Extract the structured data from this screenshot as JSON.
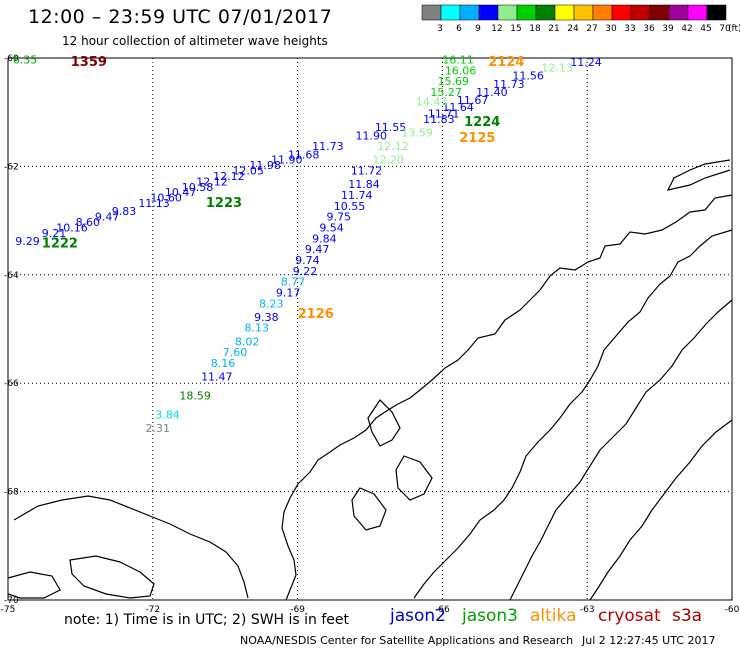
{
  "header": {
    "title": "12:00 – 23:59 UTC 07/01/2017",
    "subtitle": "12 hour collection of altimeter wave heights"
  },
  "colorbar": {
    "unit_label": "(ft)",
    "boxes": [
      {
        "color": "#808080",
        "label": "3"
      },
      {
        "color": "#00ffff",
        "label": "6"
      },
      {
        "color": "#00b0ff",
        "label": "9"
      },
      {
        "color": "#0000ff",
        "label": "12"
      },
      {
        "color": "#90ee90",
        "label": "15"
      },
      {
        "color": "#00d000",
        "label": "18"
      },
      {
        "color": "#008000",
        "label": "21"
      },
      {
        "color": "#ffff00",
        "label": "24"
      },
      {
        "color": "#ffc000",
        "label": "27"
      },
      {
        "color": "#ff8000",
        "label": "30"
      },
      {
        "color": "#ff0000",
        "label": "33"
      },
      {
        "color": "#c00000",
        "label": "36"
      },
      {
        "color": "#800000",
        "label": "39"
      },
      {
        "color": "#a000a0",
        "label": "42"
      },
      {
        "color": "#ff00ff",
        "label": "45"
      },
      {
        "color": "#000000",
        "label": "70"
      }
    ]
  },
  "axes": {
    "lon_labels": [
      "-75",
      "-72",
      "-69",
      "-66",
      "-63",
      "-60"
    ],
    "lat_labels": [
      "-60",
      "-62",
      "-64",
      "-66",
      "-68",
      "-70"
    ]
  },
  "footer": {
    "note": "note: 1) Time is in UTC; 2) SWH is in feet",
    "credit": "NOAA/NESDIS Center for Satellite Applications and Research",
    "timestamp": "Jul  2 12:27:45 UTC 2017"
  },
  "satellites": [
    {
      "name": "jason2",
      "color": "#0000c0"
    },
    {
      "name": "jason3",
      "color": "#00a000"
    },
    {
      "name": "altika",
      "color": "#ff9000"
    },
    {
      "name": "cryosat",
      "color": "#c00000"
    },
    {
      "name": "s3a",
      "color": "#a00000"
    }
  ],
  "pass_labels": [
    {
      "text": "1359",
      "color": "#800000",
      "lon": -73.7,
      "lat": -60.15
    },
    {
      "text": "2124",
      "color": "#ff9000",
      "lon": -65.05,
      "lat": -60.15
    },
    {
      "text": "1224",
      "color": "#008000",
      "lon": -65.55,
      "lat": -61.25
    },
    {
      "text": "2125",
      "color": "#ff9000",
      "lon": -65.65,
      "lat": -61.55
    },
    {
      "text": "1223",
      "color": "#008000",
      "lon": -70.9,
      "lat": -62.75
    },
    {
      "text": "1222",
      "color": "#008000",
      "lon": -74.3,
      "lat": -63.5
    },
    {
      "text": "2126",
      "color": "#ff9000",
      "lon": -69.0,
      "lat": -64.8
    }
  ],
  "obs_track_a": [
    {
      "v": "6.35",
      "c": "#00a000",
      "lon": -74.9,
      "lat": -60.1
    },
    {
      "v": "11.24",
      "c": "#0000ff",
      "lon": -63.35,
      "lat": -60.15
    },
    {
      "v": "12.13",
      "c": "#90ee90",
      "lon": -63.95,
      "lat": -60.25
    },
    {
      "v": "11.56",
      "c": "#0000ff",
      "lon": -64.55,
      "lat": -60.4
    },
    {
      "v": "11.73",
      "c": "#0000ff",
      "lon": -64.95,
      "lat": -60.55
    },
    {
      "v": "11.40",
      "c": "#0000ff",
      "lon": -65.3,
      "lat": -60.7
    },
    {
      "v": "11.67",
      "c": "#0000ff",
      "lon": -65.7,
      "lat": -60.85
    },
    {
      "v": "11.64",
      "c": "#0000ff",
      "lon": -66.0,
      "lat": -60.98
    },
    {
      "v": "11.71",
      "c": "#0000ff",
      "lon": -66.3,
      "lat": -61.1
    },
    {
      "v": "11.55",
      "c": "#0000ff",
      "lon": -67.4,
      "lat": -61.35
    },
    {
      "v": "11.90",
      "c": "#0000ff",
      "lon": -67.8,
      "lat": -61.5
    },
    {
      "v": "11.73",
      "c": "#0000ff",
      "lon": -68.7,
      "lat": -61.7
    },
    {
      "v": "11.68",
      "c": "#0000ff",
      "lon": -69.2,
      "lat": -61.85
    },
    {
      "v": "11.90",
      "c": "#0000ff",
      "lon": -69.55,
      "lat": -61.95
    },
    {
      "v": "11.98",
      "c": "#0000ff",
      "lon": -70.0,
      "lat": -62.05
    },
    {
      "v": "12.05",
      "c": "#0000ff",
      "lon": -70.35,
      "lat": -62.15
    },
    {
      "v": "12.12",
      "c": "#0000ff",
      "lon": -70.75,
      "lat": -62.25
    },
    {
      "v": "12.12",
      "c": "#0000ff",
      "lon": -71.1,
      "lat": -62.35
    },
    {
      "v": "10.58",
      "c": "#0000ff",
      "lon": -71.4,
      "lat": -62.45
    },
    {
      "v": "10.47",
      "c": "#0000ff",
      "lon": -71.75,
      "lat": -62.55
    },
    {
      "v": "10.60",
      "c": "#0000ff",
      "lon": -72.05,
      "lat": -62.65
    },
    {
      "v": "11.13",
      "c": "#0000ff",
      "lon": -72.3,
      "lat": -62.75
    },
    {
      "v": "9.83",
      "c": "#0000ff",
      "lon": -72.85,
      "lat": -62.9
    },
    {
      "v": "9.47",
      "c": "#0000ff",
      "lon": -73.2,
      "lat": -63.0
    },
    {
      "v": "8.60",
      "c": "#0000ff",
      "lon": -73.6,
      "lat": -63.1
    },
    {
      "v": "10.16",
      "c": "#0000ff",
      "lon": -74.0,
      "lat": -63.2
    },
    {
      "v": "9.21",
      "c": "#0000ff",
      "lon": -74.3,
      "lat": -63.3
    },
    {
      "v": "9.29",
      "c": "#0000ff",
      "lon": -74.85,
      "lat": -63.45
    }
  ],
  "obs_track_b": [
    {
      "v": "16.11",
      "c": "#00d000",
      "lon": -66.0,
      "lat": -60.1
    },
    {
      "v": "16.06",
      "c": "#00d000",
      "lon": -65.95,
      "lat": -60.3
    },
    {
      "v": "15.69",
      "c": "#00d000",
      "lon": -66.1,
      "lat": -60.5
    },
    {
      "v": "15.27",
      "c": "#00d000",
      "lon": -66.25,
      "lat": -60.7
    },
    {
      "v": "14.43",
      "c": "#90ee90",
      "lon": -66.55,
      "lat": -60.88
    },
    {
      "v": "11.83",
      "c": "#0000ff",
      "lon": -66.4,
      "lat": -61.2
    },
    {
      "v": "13.59",
      "c": "#90ee90",
      "lon": -66.85,
      "lat": -61.45
    },
    {
      "v": "12.12",
      "c": "#90ee90",
      "lon": -67.35,
      "lat": -61.7
    },
    {
      "v": "12.20",
      "c": "#90ee90",
      "lon": -67.45,
      "lat": -61.95
    },
    {
      "v": "11.72",
      "c": "#0000ff",
      "lon": -67.9,
      "lat": -62.15
    },
    {
      "v": "11.84",
      "c": "#0000ff",
      "lon": -67.95,
      "lat": -62.4
    },
    {
      "v": "11.74",
      "c": "#0000ff",
      "lon": -68.1,
      "lat": -62.6
    },
    {
      "v": "10.55",
      "c": "#0000ff",
      "lon": -68.25,
      "lat": -62.8
    },
    {
      "v": "9.75",
      "c": "#0000ff",
      "lon": -68.4,
      "lat": -63.0
    },
    {
      "v": "9.54",
      "c": "#0000ff",
      "lon": -68.55,
      "lat": -63.2
    },
    {
      "v": "9.84",
      "c": "#0000ff",
      "lon": -68.7,
      "lat": -63.4
    },
    {
      "v": "9.47",
      "c": "#0000ff",
      "lon": -68.85,
      "lat": -63.6
    },
    {
      "v": "9.74",
      "c": "#0000ff",
      "lon": -69.05,
      "lat": -63.8
    },
    {
      "v": "9.22",
      "c": "#0000ff",
      "lon": -69.1,
      "lat": -64.0
    },
    {
      "v": "8.77",
      "c": "#00b0ff",
      "lon": -69.35,
      "lat": -64.2
    },
    {
      "v": "9.17",
      "c": "#0000ff",
      "lon": -69.45,
      "lat": -64.4
    },
    {
      "v": "8.23",
      "c": "#00b0ff",
      "lon": -69.8,
      "lat": -64.6
    },
    {
      "v": "9.38",
      "c": "#0000ff",
      "lon": -69.9,
      "lat": -64.85
    },
    {
      "v": "8.13",
      "c": "#00b0ff",
      "lon": -70.1,
      "lat": -65.05
    },
    {
      "v": "8.02",
      "c": "#00b0ff",
      "lon": -70.3,
      "lat": -65.3
    },
    {
      "v": "7.60",
      "c": "#00b0ff",
      "lon": -70.55,
      "lat": -65.5
    },
    {
      "v": "8.16",
      "c": "#00b0ff",
      "lon": -70.8,
      "lat": -65.7
    },
    {
      "v": "11.47",
      "c": "#0000ff",
      "lon": -71.0,
      "lat": -65.95
    },
    {
      "v": "18.59",
      "c": "#008000",
      "lon": -71.45,
      "lat": -66.3
    },
    {
      "v": "3.84",
      "c": "#00e0e0",
      "lon": -71.95,
      "lat": -66.65
    },
    {
      "v": "2.31",
      "c": "#808080",
      "lon": -72.15,
      "lat": -66.9
    }
  ]
}
